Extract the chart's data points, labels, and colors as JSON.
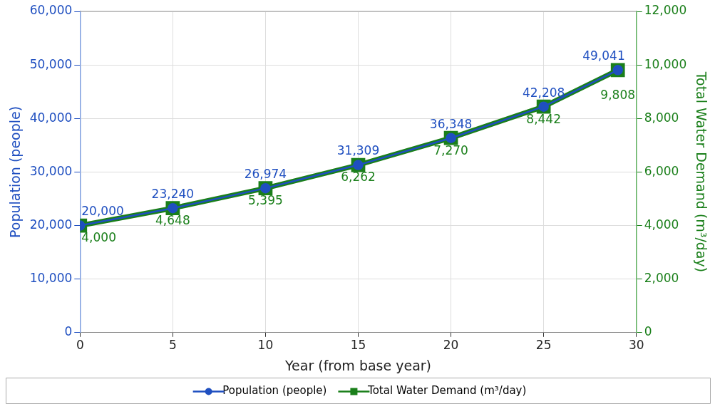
{
  "chart_data": {
    "type": "line",
    "xlabel": "Year (from base year)",
    "ylabel": "Population (people)",
    "y2label": "Total Water Demand (m³/day)",
    "x": [
      0,
      5,
      10,
      15,
      20,
      25,
      29
    ],
    "xlim": [
      0,
      30
    ],
    "xticks": [
      0,
      5,
      10,
      15,
      20,
      25,
      30
    ],
    "ylim": [
      0,
      60000
    ],
    "yticks": [
      {
        "value": 0,
        "label": "0"
      },
      {
        "value": 10000,
        "label": "10,000"
      },
      {
        "value": 20000,
        "label": "20,000"
      },
      {
        "value": 30000,
        "label": "30,000"
      },
      {
        "value": 40000,
        "label": "40,000"
      },
      {
        "value": 50000,
        "label": "50,000"
      },
      {
        "value": 60000,
        "label": "60,000"
      }
    ],
    "y2lim": [
      0,
      12000
    ],
    "y2ticks": [
      {
        "value": 0,
        "label": "0"
      },
      {
        "value": 2000,
        "label": "2,000"
      },
      {
        "value": 4000,
        "label": "4,000"
      },
      {
        "value": 6000,
        "label": "6,000"
      },
      {
        "value": 8000,
        "label": "8,000"
      },
      {
        "value": 10000,
        "label": "10,000"
      },
      {
        "value": 12000,
        "label": "12,000"
      }
    ],
    "series": [
      {
        "name": "Population (people)",
        "color": "#1f4fc0",
        "marker": "circle",
        "values": [
          20000,
          23240,
          26974,
          31309,
          36348,
          42208,
          49041
        ],
        "value_labels": [
          "20,000",
          "23,240",
          "26,974",
          "31,309",
          "36,348",
          "42,208",
          "49,041"
        ]
      },
      {
        "name": "Total Water Demand (m³/day)",
        "color": "#1a7f1a",
        "marker": "square",
        "axis": "y2",
        "values": [
          4000,
          4648,
          5395,
          6262,
          7270,
          8442,
          9808
        ],
        "value_labels": [
          "4,000",
          "4,648",
          "5,395",
          "6,262",
          "7,270",
          "8,442",
          "9,808"
        ]
      }
    ],
    "grid": true,
    "line_style": "solid",
    "legend": "bottom"
  }
}
